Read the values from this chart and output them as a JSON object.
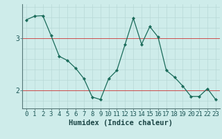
{
  "x": [
    0,
    1,
    2,
    3,
    4,
    5,
    6,
    7,
    8,
    9,
    10,
    11,
    12,
    13,
    14,
    15,
    16,
    17,
    18,
    19,
    20,
    21,
    22,
    23
  ],
  "y": [
    3.35,
    3.42,
    3.43,
    3.05,
    2.65,
    2.57,
    2.42,
    2.22,
    1.87,
    1.82,
    2.22,
    2.38,
    2.88,
    3.38,
    2.88,
    3.22,
    3.02,
    2.38,
    2.25,
    2.08,
    1.88,
    1.88,
    2.03,
    1.82
  ],
  "line_color": "#1a6b5a",
  "marker": "D",
  "marker_size": 2.2,
  "bg_color": "#ceecea",
  "grid_color": "#b8d8d6",
  "xlabel": "Humidex (Indice chaleur)",
  "xlabel_fontsize": 7.5,
  "yticks": [
    2,
    3
  ],
  "ylim": [
    1.65,
    3.65
  ],
  "xlim": [
    -0.5,
    23.5
  ],
  "xticks": [
    0,
    1,
    2,
    3,
    4,
    5,
    6,
    7,
    8,
    9,
    10,
    11,
    12,
    13,
    14,
    15,
    16,
    17,
    18,
    19,
    20,
    21,
    22,
    23
  ],
  "tick_fontsize": 6.5,
  "red_line_y": [
    2,
    3
  ],
  "red_line_color": "#cc3333",
  "spine_color": "#557777",
  "ylabel_2": "2",
  "ylabel_3": "3"
}
